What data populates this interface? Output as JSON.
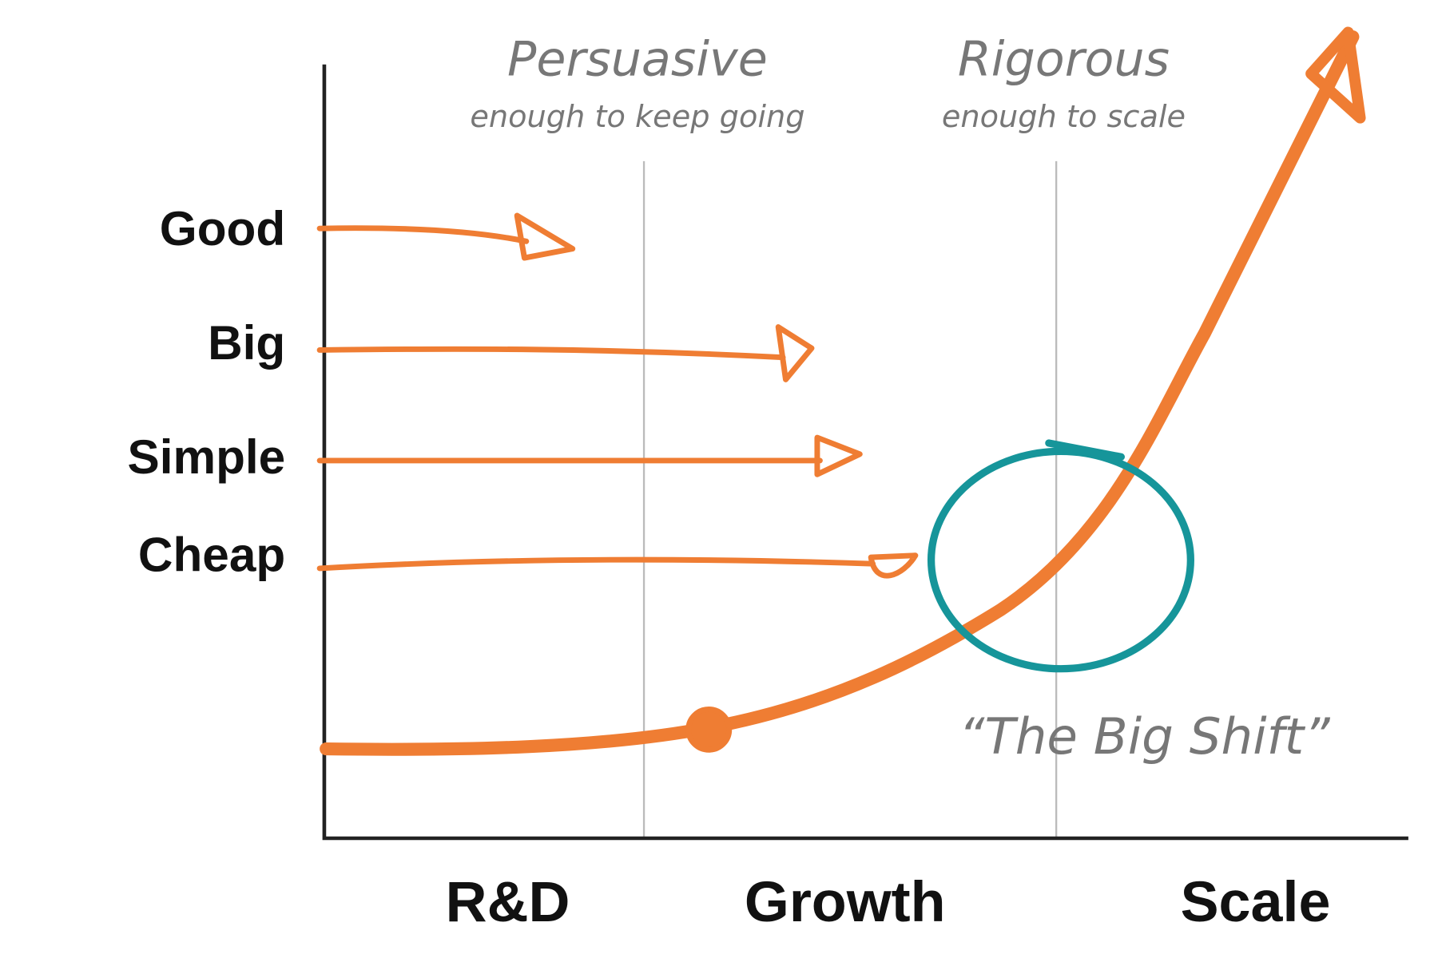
{
  "headers": [
    {
      "title": "Persuasive",
      "subtitle": "enough to keep going"
    },
    {
      "title": "Rigorous",
      "subtitle": "enough to scale"
    }
  ],
  "rows": [
    "Good",
    "Big",
    "Simple",
    "Cheap"
  ],
  "stages": [
    "R&D",
    "Growth",
    "Scale"
  ],
  "annotation": "“The Big Shift”"
}
